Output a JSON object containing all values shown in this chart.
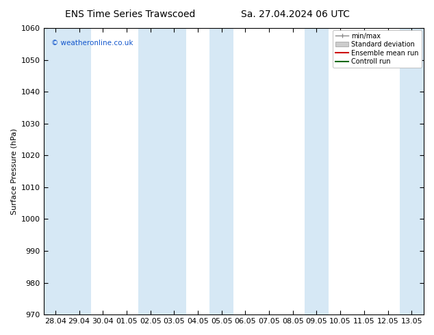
{
  "title_left": "ENS Time Series Trawscoed",
  "title_right": "Sa. 27.04.2024 06 UTC",
  "ylabel": "Surface Pressure (hPa)",
  "ylim": [
    970,
    1060
  ],
  "yticks": [
    970,
    980,
    990,
    1000,
    1010,
    1020,
    1030,
    1040,
    1050,
    1060
  ],
  "xlabels": [
    "28.04",
    "29.04",
    "30.04",
    "01.05",
    "02.05",
    "03.05",
    "04.05",
    "05.05",
    "06.05",
    "07.05",
    "08.05",
    "09.05",
    "10.05",
    "11.05",
    "12.05",
    "13.05"
  ],
  "band_color": "#d6e8f5",
  "bg_color": "#ffffff",
  "plot_bg_color": "#ffffff",
  "copyright_text": "© weatheronline.co.uk",
  "copyright_color": "#1155cc",
  "shaded_xranges": [
    [
      -0.5,
      1.5
    ],
    [
      3.5,
      5.5
    ],
    [
      6.5,
      7.5
    ],
    [
      10.5,
      11.5
    ],
    [
      14.5,
      15.5
    ]
  ],
  "legend_items": [
    {
      "label": "min/max"
    },
    {
      "label": "Standard deviation"
    },
    {
      "label": "Ensemble mean run"
    },
    {
      "label": "Controll run"
    }
  ],
  "minmax_color": "#888888",
  "std_color": "#cccccc",
  "ensemble_color": "#cc0000",
  "control_color": "#006600",
  "title_fontsize": 10,
  "axis_fontsize": 8,
  "tick_fontsize": 8,
  "ylabel_fontsize": 8
}
